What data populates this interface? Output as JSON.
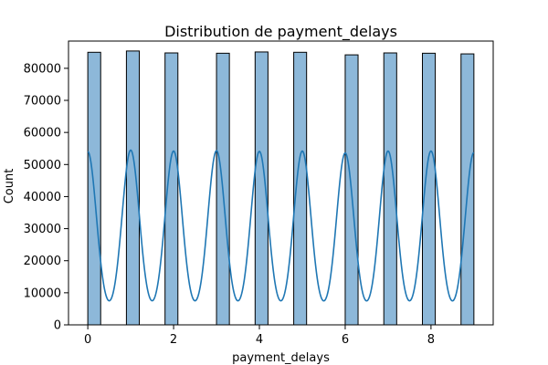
{
  "chart_data": {
    "type": "bar",
    "title": "Distribution de payment_delays",
    "xlabel": "payment_delays",
    "ylabel": "Count",
    "xlim": [
      -0.45,
      9.45
    ],
    "ylim": [
      0,
      88500
    ],
    "x_ticks": [
      0,
      2,
      4,
      6,
      8
    ],
    "y_ticks": [
      0,
      10000,
      20000,
      30000,
      40000,
      50000,
      60000,
      70000,
      80000
    ],
    "grid": false,
    "legend": "none",
    "colors": {
      "bar_fill": "#8db8d9",
      "bar_edge": "#000000",
      "kde_line": "#1f77b4"
    },
    "bins": [
      {
        "x0": 0.0,
        "x1": 0.3,
        "count": 85000
      },
      {
        "x0": 0.9,
        "x1": 1.2,
        "count": 85400
      },
      {
        "x0": 1.8,
        "x1": 2.1,
        "count": 84800
      },
      {
        "x0": 3.0,
        "x1": 3.3,
        "count": 84700
      },
      {
        "x0": 3.9,
        "x1": 4.2,
        "count": 85100
      },
      {
        "x0": 4.8,
        "x1": 5.1,
        "count": 85000
      },
      {
        "x0": 6.0,
        "x1": 6.3,
        "count": 84200
      },
      {
        "x0": 6.9,
        "x1": 7.2,
        "count": 84800
      },
      {
        "x0": 7.8,
        "x1": 8.1,
        "count": 84700
      },
      {
        "x0": 8.7,
        "x1": 9.0,
        "count": 84500
      }
    ],
    "kde": {
      "peaks_x": [
        0,
        1,
        2,
        3,
        4,
        5,
        6,
        7,
        8,
        9
      ],
      "peaks_y": [
        54000,
        54500,
        54200,
        54300,
        54100,
        54200,
        53600,
        54200,
        54200,
        53700
      ],
      "trough_y": 3000
    }
  }
}
